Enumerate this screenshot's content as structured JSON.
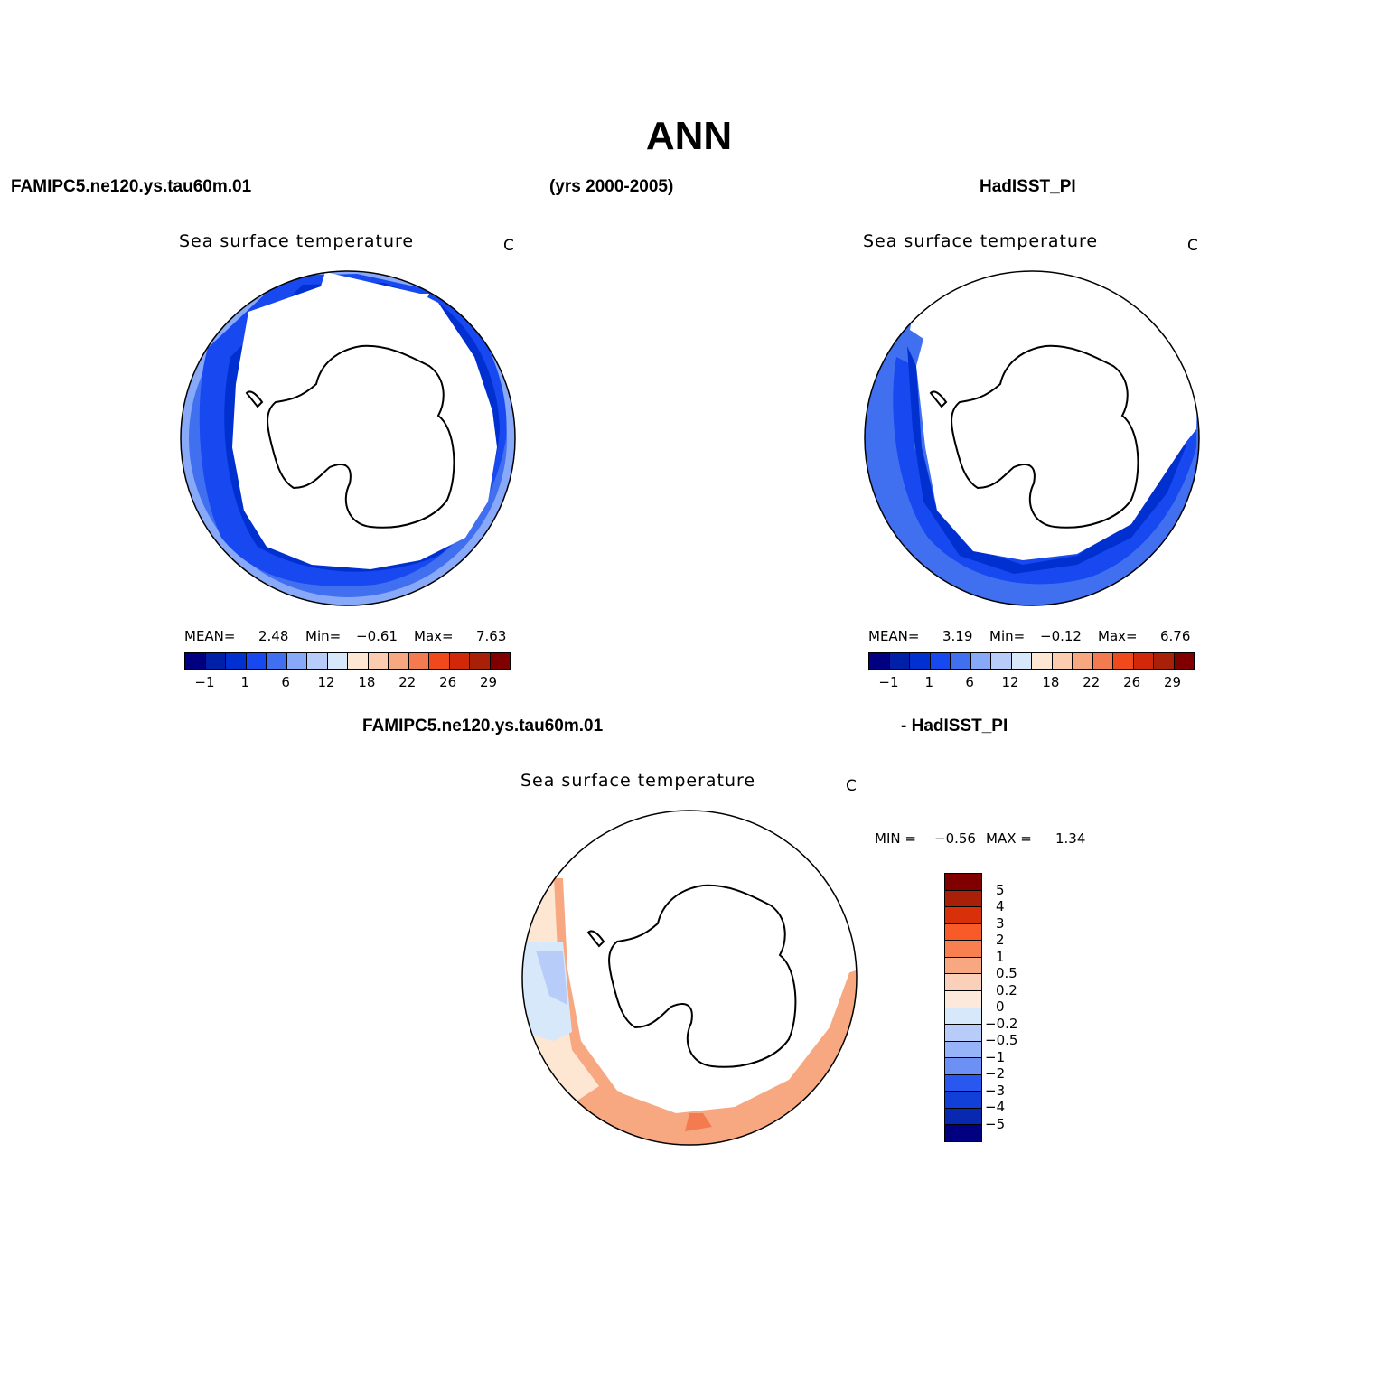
{
  "title": "ANN",
  "header": {
    "case_name": "FAMIPC5.ne120.ys.tau60m.01",
    "years": "(yrs 2000-2005)",
    "obs_name": "HadISST_PI"
  },
  "diff_header": {
    "case_name": "FAMIPC5.ne120.ys.tau60m.01",
    "obs_part": "- HadISST_PI"
  },
  "panels": [
    {
      "title": "Sea surface temperature",
      "units": "C",
      "stats": {
        "mean_label": "MEAN=",
        "mean": "2.48",
        "min_label": "Min=",
        "min": "-0.61",
        "max_label": "Max=",
        "max": "7.63"
      }
    },
    {
      "title": "Sea surface temperature",
      "units": "C",
      "stats": {
        "mean_label": "MEAN=",
        "mean": "3.19",
        "min_label": "Min=",
        "min": "-0.12",
        "max_label": "Max=",
        "max": "6.76"
      }
    },
    {
      "title": "Sea surface temperature",
      "units": "C",
      "stats": {
        "min_label": "MIN =",
        "min": "-0.56",
        "max_label": "MAX =",
        "max": "1.34"
      }
    }
  ],
  "colorbar_abs": {
    "colors": [
      "#000080",
      "#0020a8",
      "#0030d0",
      "#1848f0",
      "#4070f0",
      "#88a8f8",
      "#b8ccfa",
      "#d8e8fb",
      "#fde6d2",
      "#fcccb0",
      "#f8a880",
      "#f47a50",
      "#f04a1c",
      "#d02808",
      "#a82008",
      "#800000"
    ],
    "tick_labels": [
      "-1",
      "1",
      "6",
      "12",
      "18",
      "22",
      "26",
      "29"
    ]
  },
  "colorbar_diff": {
    "colors": [
      "#800000",
      "#a82008",
      "#d83008",
      "#f85a28",
      "#f88050",
      "#f8a880",
      "#fbd0b8",
      "#fde8dc",
      "#d8e8fb",
      "#b8ccfa",
      "#98b4f8",
      "#6c90f4",
      "#2858f0",
      "#1040d8",
      "#0828b0",
      "#000080"
    ],
    "tick_labels": [
      "5",
      "4",
      "3",
      "2",
      "1",
      "0.5",
      "0.2",
      "0",
      "-0.2",
      "-0.5",
      "-1",
      "-2",
      "-3",
      "-4",
      "-5"
    ]
  }
}
